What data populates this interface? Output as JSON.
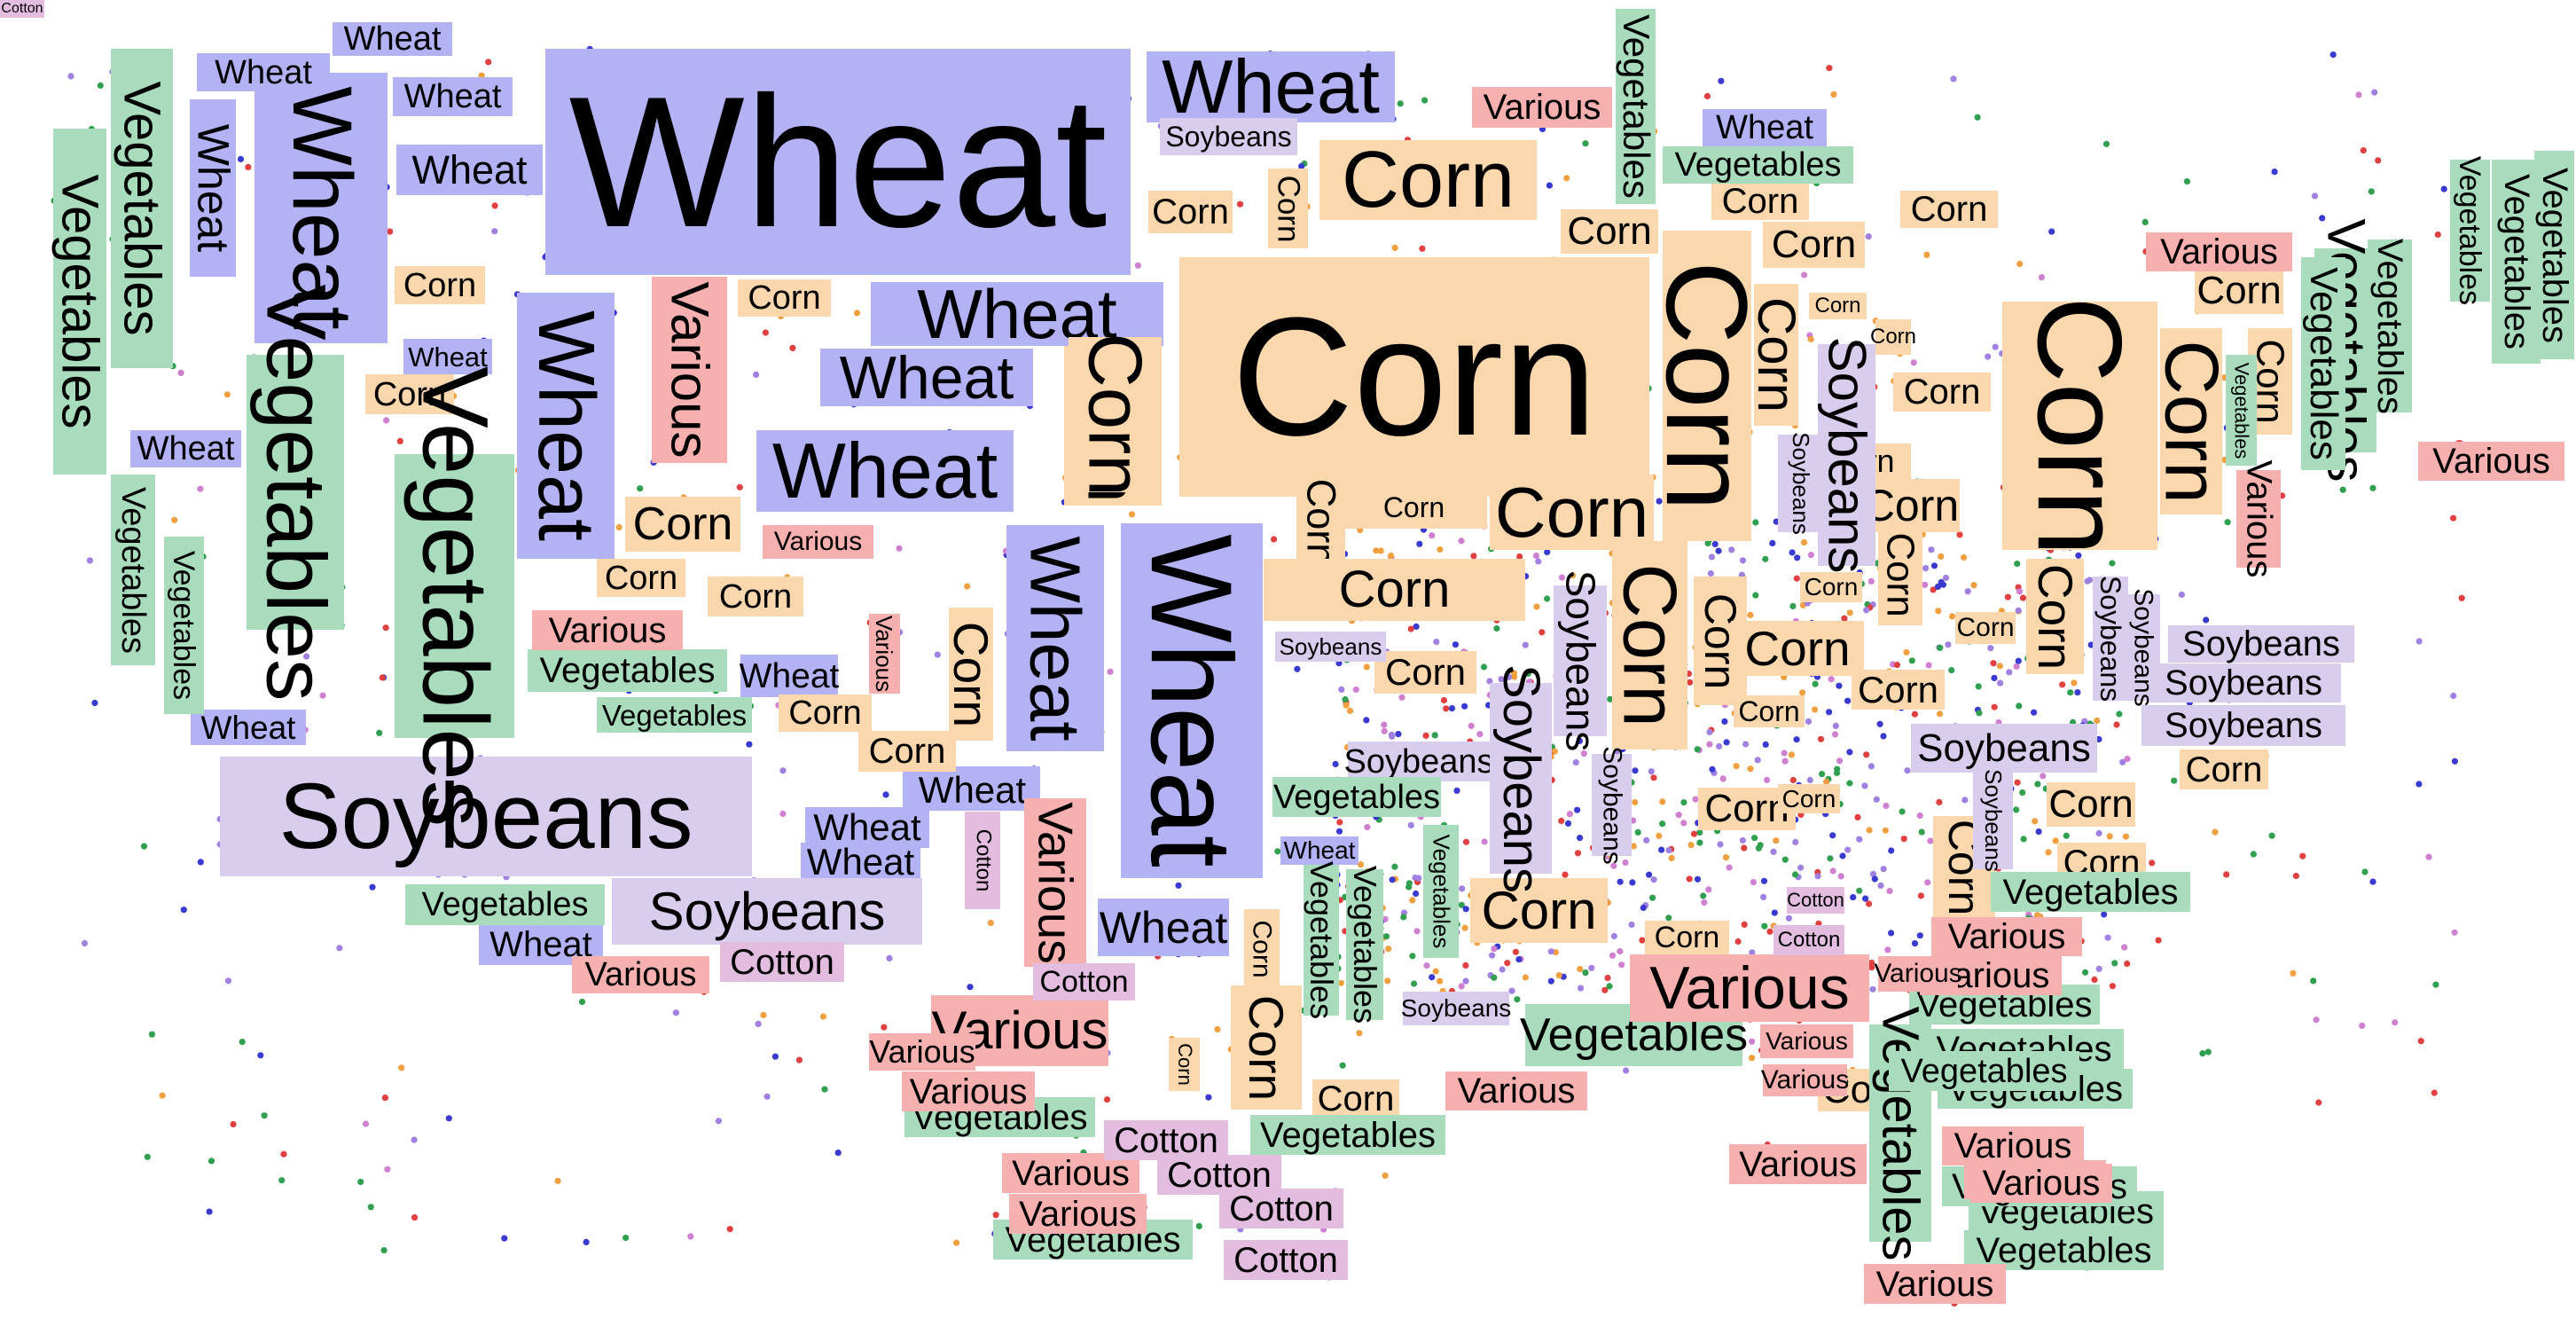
{
  "colors": {
    "Wheat": "#b2b2f5",
    "Corn": "#fbd7ae",
    "Soybeans": "#d9cdee",
    "Vegetables": "#a9dcbc",
    "Various": "#f7b0b0",
    "Cotton": "#e2bde0"
  },
  "dot_colors": {
    "Wheat": "#3a3ad0",
    "Corn": "#f0a040",
    "Soybeans": "#a080e0",
    "Vegetables": "#30a050",
    "Various": "#e04040",
    "Cotton": "#d080d0"
  },
  "labels": [
    {
      "text": "Wheat",
      "crop": "Wheat"
    },
    {
      "text": "Wheat",
      "crop": "Wheat"
    },
    {
      "text": "Wheat",
      "crop": "Wheat"
    },
    {
      "text": "Wheat",
      "crop": "Wheat"
    },
    {
      "text": "Wheat",
      "crop": "Wheat"
    },
    {
      "text": "Wheat",
      "crop": "Wheat"
    },
    {
      "text": "Wheat",
      "crop": "Wheat"
    },
    {
      "text": "Wheat",
      "crop": "Wheat"
    },
    {
      "text": "Wheat",
      "crop": "Wheat"
    },
    {
      "text": "Wheat",
      "crop": "Wheat"
    },
    {
      "text": "Wheat",
      "crop": "Wheat"
    },
    {
      "text": "Wheat",
      "crop": "Wheat"
    },
    {
      "text": "Wheat",
      "crop": "Wheat"
    },
    {
      "text": "Wheat",
      "crop": "Wheat"
    },
    {
      "text": "Wheat",
      "crop": "Wheat"
    },
    {
      "text": "Wheat",
      "crop": "Wheat"
    },
    {
      "text": "Wheat",
      "crop": "Wheat"
    },
    {
      "text": "Wheat",
      "crop": "Wheat"
    },
    {
      "text": "Wheat",
      "crop": "Wheat"
    },
    {
      "text": "Wheat",
      "crop": "Wheat"
    },
    {
      "text": "Wheat",
      "crop": "Wheat"
    },
    {
      "text": "Wheat",
      "crop": "Wheat"
    },
    {
      "text": "Wheat",
      "crop": "Wheat"
    },
    {
      "text": "Wheat",
      "crop": "Wheat"
    },
    {
      "text": "Wheat",
      "crop": "Wheat"
    },
    {
      "text": "Wheat",
      "crop": "Wheat"
    },
    {
      "text": "Corn",
      "crop": "Corn"
    },
    {
      "text": "Corn",
      "crop": "Corn"
    },
    {
      "text": "Corn",
      "crop": "Corn"
    },
    {
      "text": "Corn",
      "crop": "Corn"
    },
    {
      "text": "Corn",
      "crop": "Corn"
    },
    {
      "text": "Corn",
      "crop": "Corn"
    },
    {
      "text": "Corn",
      "crop": "Corn"
    },
    {
      "text": "Corn",
      "crop": "Corn"
    },
    {
      "text": "Corn",
      "crop": "Corn"
    },
    {
      "text": "Corn",
      "crop": "Corn"
    },
    {
      "text": "Corn",
      "crop": "Corn"
    },
    {
      "text": "Corn",
      "crop": "Corn"
    },
    {
      "text": "Corn",
      "crop": "Corn"
    },
    {
      "text": "Corn",
      "crop": "Corn"
    },
    {
      "text": "Corn",
      "crop": "Corn"
    },
    {
      "text": "Corn",
      "crop": "Corn"
    },
    {
      "text": "Corn",
      "crop": "Corn"
    },
    {
      "text": "Corn",
      "crop": "Corn"
    },
    {
      "text": "Corn",
      "crop": "Corn"
    },
    {
      "text": "Corn",
      "crop": "Corn"
    },
    {
      "text": "Corn",
      "crop": "Corn"
    },
    {
      "text": "Corn",
      "crop": "Corn"
    },
    {
      "text": "Corn",
      "crop": "Corn"
    },
    {
      "text": "Corn",
      "crop": "Corn"
    },
    {
      "text": "Corn",
      "crop": "Corn"
    },
    {
      "text": "Corn",
      "crop": "Corn"
    },
    {
      "text": "Corn",
      "crop": "Corn"
    },
    {
      "text": "Corn",
      "crop": "Corn"
    },
    {
      "text": "Corn",
      "crop": "Corn"
    },
    {
      "text": "Corn",
      "crop": "Corn"
    },
    {
      "text": "Corn",
      "crop": "Corn"
    },
    {
      "text": "Corn",
      "crop": "Corn"
    },
    {
      "text": "Corn",
      "crop": "Corn"
    },
    {
      "text": "Corn",
      "crop": "Corn"
    },
    {
      "text": "Corn",
      "crop": "Corn"
    },
    {
      "text": "Corn",
      "crop": "Corn"
    },
    {
      "text": "Corn",
      "crop": "Corn"
    },
    {
      "text": "Corn",
      "crop": "Corn"
    },
    {
      "text": "Corn",
      "crop": "Corn"
    },
    {
      "text": "Corn",
      "crop": "Corn"
    },
    {
      "text": "Corn",
      "crop": "Corn"
    },
    {
      "text": "Corn",
      "crop": "Corn"
    },
    {
      "text": "Corn",
      "crop": "Corn"
    },
    {
      "text": "Corn",
      "crop": "Corn"
    },
    {
      "text": "Corn",
      "crop": "Corn"
    },
    {
      "text": "Corn",
      "crop": "Corn"
    },
    {
      "text": "Corn",
      "crop": "Corn"
    },
    {
      "text": "Corn",
      "crop": "Corn"
    },
    {
      "text": "Corn",
      "crop": "Corn"
    },
    {
      "text": "Corn",
      "crop": "Corn"
    },
    {
      "text": "Corn",
      "crop": "Corn"
    },
    {
      "text": "Corn",
      "crop": "Corn"
    },
    {
      "text": "Corn",
      "crop": "Corn"
    },
    {
      "text": "Corn",
      "crop": "Corn"
    },
    {
      "text": "Corn",
      "crop": "Corn"
    },
    {
      "text": "Corn",
      "crop": "Corn"
    },
    {
      "text": "Corn",
      "crop": "Corn"
    },
    {
      "text": "Soybeans",
      "crop": "Soybeans"
    },
    {
      "text": "Soybeans",
      "crop": "Soybeans"
    },
    {
      "text": "Soybeans",
      "crop": "Soybeans"
    },
    {
      "text": "Soybeans",
      "crop": "Soybeans"
    },
    {
      "text": "Soybeans",
      "crop": "Soybeans"
    },
    {
      "text": "Soybeans",
      "crop": "Soybeans"
    },
    {
      "text": "Soybeans",
      "crop": "Soybeans"
    },
    {
      "text": "Soybeans",
      "crop": "Soybeans"
    },
    {
      "text": "Soybeans",
      "crop": "Soybeans"
    },
    {
      "text": "Soybeans",
      "crop": "Soybeans"
    },
    {
      "text": "Soybeans",
      "crop": "Soybeans"
    },
    {
      "text": "Soybeans",
      "crop": "Soybeans"
    },
    {
      "text": "Soybeans",
      "crop": "Soybeans"
    },
    {
      "text": "Soybeans",
      "crop": "Soybeans"
    },
    {
      "text": "Soybeans",
      "crop": "Soybeans"
    },
    {
      "text": "Soybeans",
      "crop": "Soybeans"
    },
    {
      "text": "Soybeans",
      "crop": "Soybeans"
    },
    {
      "text": "Soybeans",
      "crop": "Soybeans"
    },
    {
      "text": "Vegetables",
      "crop": "Vegetables"
    },
    {
      "text": "Vegetables",
      "crop": "Vegetables"
    },
    {
      "text": "Vegetables",
      "crop": "Vegetables"
    },
    {
      "text": "Vegetables",
      "crop": "Vegetables"
    },
    {
      "text": "Vegetables",
      "crop": "Vegetables"
    },
    {
      "text": "Vegetables",
      "crop": "Vegetables"
    },
    {
      "text": "Vegetables",
      "crop": "Vegetables"
    },
    {
      "text": "Vegetables",
      "crop": "Vegetables"
    },
    {
      "text": "Vegetables",
      "crop": "Vegetables"
    },
    {
      "text": "Vegetables",
      "crop": "Vegetables"
    },
    {
      "text": "Vegetables",
      "crop": "Vegetables"
    },
    {
      "text": "Vegetables",
      "crop": "Vegetables"
    },
    {
      "text": "Vegetables",
      "crop": "Vegetables"
    },
    {
      "text": "Vegetables",
      "crop": "Vegetables"
    },
    {
      "text": "Vegetables",
      "crop": "Vegetables"
    },
    {
      "text": "Vegetables",
      "crop": "Vegetables"
    },
    {
      "text": "Vegetables",
      "crop": "Vegetables"
    },
    {
      "text": "Vegetables",
      "crop": "Vegetables"
    },
    {
      "text": "Vegetables",
      "crop": "Vegetables"
    },
    {
      "text": "Vegetables",
      "crop": "Vegetables"
    },
    {
      "text": "Vegetables",
      "crop": "Vegetables"
    },
    {
      "text": "Vegetables",
      "crop": "Vegetables"
    },
    {
      "text": "Vegetables",
      "crop": "Vegetables"
    },
    {
      "text": "Vegetables",
      "crop": "Vegetables"
    },
    {
      "text": "Vegetables",
      "crop": "Vegetables"
    },
    {
      "text": "Vegetables",
      "crop": "Vegetables"
    },
    {
      "text": "Vegetables",
      "crop": "Vegetables"
    },
    {
      "text": "Vegetables",
      "crop": "Vegetables"
    },
    {
      "text": "Vegetables",
      "crop": "Vegetables"
    },
    {
      "text": "Vegetables",
      "crop": "Vegetables"
    },
    {
      "text": "Vegetables",
      "crop": "Vegetables"
    },
    {
      "text": "Vegetables",
      "crop": "Vegetables"
    },
    {
      "text": "Vegetables",
      "crop": "Vegetables"
    },
    {
      "text": "Vegetables",
      "crop": "Vegetables"
    },
    {
      "text": "Vegetables",
      "crop": "Vegetables"
    },
    {
      "text": "Various",
      "crop": "Various"
    },
    {
      "text": "Various",
      "crop": "Various"
    },
    {
      "text": "Various",
      "crop": "Various"
    },
    {
      "text": "Various",
      "crop": "Various"
    },
    {
      "text": "Various",
      "crop": "Various"
    },
    {
      "text": "Various",
      "crop": "Various"
    },
    {
      "text": "Various",
      "crop": "Various"
    },
    {
      "text": "Various",
      "crop": "Various"
    },
    {
      "text": "Various",
      "crop": "Various"
    },
    {
      "text": "Various",
      "crop": "Various"
    },
    {
      "text": "Various",
      "crop": "Various"
    },
    {
      "text": "Various",
      "crop": "Various"
    },
    {
      "text": "Various",
      "crop": "Various"
    },
    {
      "text": "Various",
      "crop": "Various"
    },
    {
      "text": "Various",
      "crop": "Various"
    },
    {
      "text": "Various",
      "crop": "Various"
    },
    {
      "text": "Various",
      "crop": "Various"
    },
    {
      "text": "Various",
      "crop": "Various"
    },
    {
      "text": "Various",
      "crop": "Various"
    },
    {
      "text": "Various",
      "crop": "Various"
    },
    {
      "text": "Various",
      "crop": "Various"
    },
    {
      "text": "Various",
      "crop": "Various"
    },
    {
      "text": "Various",
      "crop": "Various"
    },
    {
      "text": "Various",
      "crop": "Various"
    },
    {
      "text": "Various",
      "crop": "Various"
    },
    {
      "text": "Various",
      "crop": "Various"
    },
    {
      "text": "Various",
      "crop": "Various"
    },
    {
      "text": "Cotton",
      "crop": "Cotton"
    },
    {
      "text": "Cotton",
      "crop": "Cotton"
    },
    {
      "text": "Cotton",
      "crop": "Cotton"
    },
    {
      "text": "Cotton",
      "crop": "Cotton"
    },
    {
      "text": "Cotton",
      "crop": "Cotton"
    },
    {
      "text": "Cotton",
      "crop": "Cotton"
    },
    {
      "text": "Cotton",
      "crop": "Cotton"
    },
    {
      "text": "Cotton",
      "crop": "Cotton"
    },
    {
      "text": "Cotton",
      "crop": "Cotton"
    },
    {
      "text": "Cotton",
      "crop": "Cotton"
    },
    {
      "text": "Cotton",
      "crop": "Cotton"
    }
  ]
}
